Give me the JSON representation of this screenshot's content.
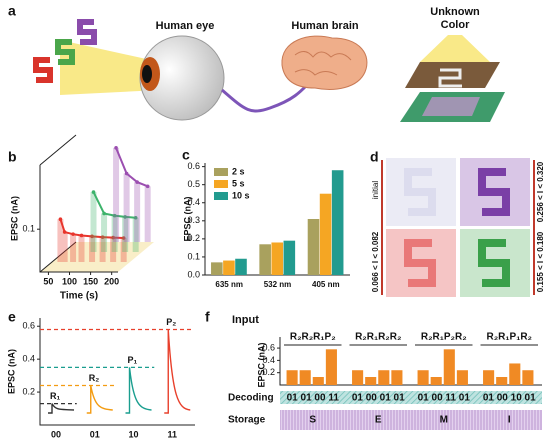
{
  "panels": {
    "a": {
      "label": "a",
      "eye": "Human eye",
      "brain": "Human brain",
      "unknown": "Unknown",
      "color": "Color"
    },
    "d": {
      "label": "d",
      "initial": "initial",
      "range1": "0.066 < I < 0.082",
      "range2": "0.256 < I < 0.320",
      "range3": "0.155 < I < 0.180"
    }
  },
  "chart_data": [
    {
      "panel": "b",
      "type": "line",
      "xlabel": "Time (s)",
      "ylabel": "EPSC (nA)",
      "x": [
        50,
        60,
        80,
        100,
        125,
        150,
        175,
        200
      ],
      "xlim": [
        30,
        215
      ],
      "xticks": [
        50,
        100,
        150,
        200
      ],
      "ylim": [
        0,
        0.25
      ],
      "yticks": [
        0.1
      ],
      "series": [
        {
          "name": null,
          "color": "#e8352c",
          "values": [
            0.1,
            0.07,
            0.065,
            0.062,
            0.06,
            0.058,
            0.057,
            0.056
          ]
        },
        {
          "name": null,
          "color": "#3db36b",
          "values": [
            null,
            null,
            null,
            0.14,
            0.09,
            0.085,
            0.082,
            0.08
          ]
        },
        {
          "name": null,
          "color": "#9b4fb0",
          "values": [
            null,
            null,
            null,
            null,
            0.22,
            0.16,
            0.14,
            0.13
          ]
        }
      ]
    },
    {
      "panel": "c",
      "type": "bar",
      "ylabel": "EPSC (nA)",
      "categories": [
        "635 nm",
        "532 nm",
        "405 nm"
      ],
      "ylim": [
        0,
        0.62
      ],
      "yticks": [
        {
          "value": 0,
          "label": "0.0"
        },
        0.1,
        0.2,
        0.3,
        0.4,
        0.5,
        0.6
      ],
      "series": [
        {
          "name": "2 s",
          "color": "#a9a15e",
          "values": [
            0.07,
            0.17,
            0.31
          ]
        },
        {
          "name": "5 s",
          "color": "#f5a623",
          "values": [
            0.08,
            0.18,
            0.45
          ]
        },
        {
          "name": "10 s",
          "color": "#229b8f",
          "values": [
            0.09,
            0.19,
            0.58
          ]
        }
      ]
    },
    {
      "panel": "e",
      "type": "pulse",
      "ylabel": "EPSC (nA)",
      "categories": [
        "00",
        "01",
        "10",
        "11"
      ],
      "labels": [
        "R₁",
        "R₂",
        "P₁",
        "P₂"
      ],
      "colors": [
        "#333333",
        "#f39c12",
        "#1a9e8f",
        "#e8402c"
      ],
      "values": [
        0.13,
        0.24,
        0.35,
        0.58
      ],
      "ylim": [
        0,
        0.65
      ],
      "yticks": [
        0.2,
        0.4,
        0.6
      ]
    },
    {
      "panel": "f",
      "type": "bar",
      "input_label": "Input",
      "ylabel": "EPSC (nA)",
      "decoding_label": "Decoding",
      "storage_label": "Storage",
      "color": "#f08a24",
      "ylim": [
        0,
        0.65
      ],
      "yticks": [
        0.2,
        0.4,
        0.6
      ],
      "groups": [
        {
          "label": "R₂R₂R₁P₂",
          "values": [
            0.24,
            0.24,
            0.13,
            0.58
          ],
          "decoding": "01 01 00 11",
          "storage": "S"
        },
        {
          "label": "R₂R₁R₂R₂",
          "values": [
            0.24,
            0.13,
            0.24,
            0.24
          ],
          "decoding": "01 00 01 01",
          "storage": "E"
        },
        {
          "label": "R₂R₁P₂R₂",
          "values": [
            0.24,
            0.13,
            0.58,
            0.24
          ],
          "decoding": "01 00 11 01",
          "storage": "M"
        },
        {
          "label": "R₂R₁P₁R₂",
          "values": [
            0.24,
            0.13,
            0.35,
            0.24
          ],
          "decoding": "01 00 10 01",
          "storage": "I"
        }
      ]
    }
  ]
}
